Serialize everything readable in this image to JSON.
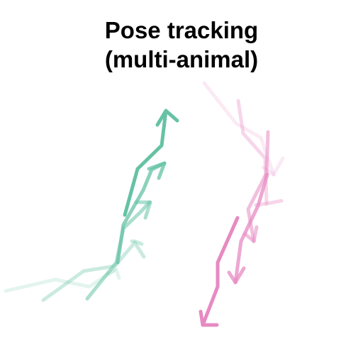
{
  "title": {
    "line1": "Pose tracking",
    "line2": "(multi-animal)"
  },
  "colors": {
    "animal_a": "#66c2a5",
    "animal_b": "#e78ac3"
  },
  "tracks": [
    {
      "animal": "animal_a",
      "segment": 1,
      "opacity": 0.18
    },
    {
      "animal": "animal_a",
      "segment": 2,
      "opacity": 0.35
    },
    {
      "animal": "animal_a",
      "segment": 3,
      "opacity": 0.55
    },
    {
      "animal": "animal_a",
      "segment": 4,
      "opacity": 0.75
    },
    {
      "animal": "animal_a",
      "segment": 5,
      "opacity": 1.0
    },
    {
      "animal": "animal_b",
      "segment": 1,
      "opacity": 0.18
    },
    {
      "animal": "animal_b",
      "segment": 2,
      "opacity": 0.35
    },
    {
      "animal": "animal_b",
      "segment": 3,
      "opacity": 0.55
    },
    {
      "animal": "animal_b",
      "segment": 4,
      "opacity": 0.75
    },
    {
      "animal": "animal_b",
      "segment": 5,
      "opacity": 1.0
    }
  ]
}
